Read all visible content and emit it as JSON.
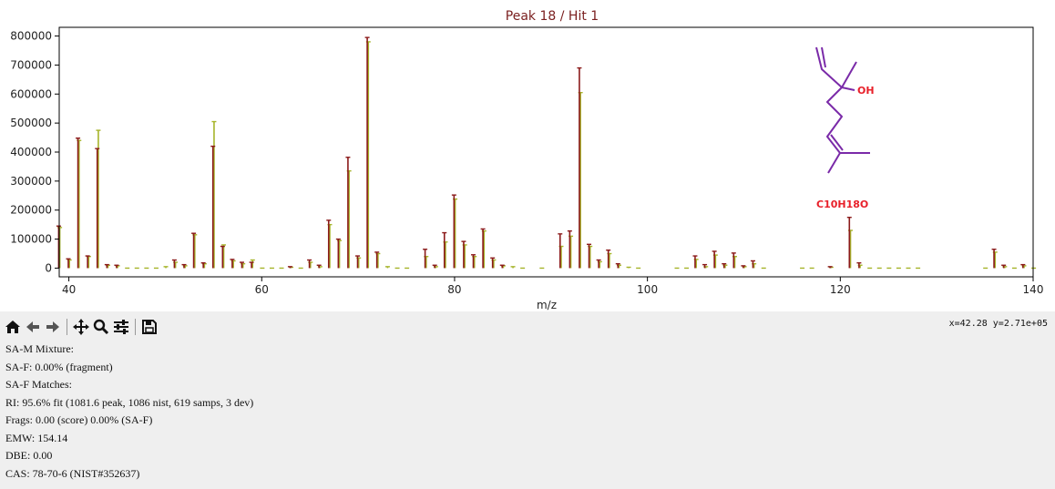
{
  "chart_data": {
    "type": "bar",
    "title": "Peak 18 / Hit 1",
    "xlabel": "m/z",
    "ylabel": "",
    "xlim": [
      39,
      140
    ],
    "ylim": [
      -30000,
      830000
    ],
    "x_ticks": [
      40,
      60,
      80,
      100,
      120,
      140
    ],
    "y_ticks": [
      0,
      100000,
      200000,
      300000,
      400000,
      500000,
      600000,
      700000,
      800000
    ],
    "grid": false,
    "series": [
      {
        "color": "#8b1a1a",
        "x": [
          39,
          40,
          41,
          42,
          43,
          44,
          45,
          51,
          52,
          53,
          54,
          55,
          56,
          57,
          58,
          59,
          63,
          65,
          66,
          67,
          68,
          69,
          70,
          71,
          72,
          77,
          78,
          79,
          80,
          81,
          82,
          83,
          84,
          85,
          91,
          92,
          93,
          94,
          95,
          96,
          97,
          105,
          106,
          107,
          108,
          109,
          110,
          111,
          119,
          121,
          122,
          136,
          137,
          139
        ],
        "values": [
          145000,
          32000,
          448000,
          42000,
          412000,
          12000,
          10000,
          28000,
          12000,
          120000,
          18000,
          420000,
          75000,
          30000,
          20000,
          20000,
          5000,
          28000,
          10000,
          165000,
          100000,
          382000,
          42000,
          795000,
          55000,
          65000,
          10000,
          122000,
          252000,
          92000,
          46000,
          135000,
          35000,
          10000,
          118000,
          128000,
          690000,
          82000,
          28000,
          62000,
          15000,
          42000,
          12000,
          58000,
          15000,
          52000,
          8000,
          25000,
          5000,
          175000,
          18000,
          65000,
          10000,
          12000
        ]
      },
      {
        "color": "#a6b42a",
        "x": [
          39,
          40,
          41,
          42,
          43,
          44,
          45,
          46,
          47,
          48,
          49,
          50,
          51,
          52,
          53,
          54,
          55,
          56,
          57,
          58,
          59,
          60,
          61,
          62,
          63,
          64,
          65,
          66,
          67,
          68,
          69,
          70,
          71,
          72,
          73,
          74,
          75,
          77,
          78,
          79,
          80,
          81,
          82,
          83,
          84,
          85,
          86,
          87,
          89,
          91,
          92,
          93,
          94,
          95,
          96,
          97,
          98,
          99,
          103,
          104,
          105,
          106,
          107,
          108,
          109,
          110,
          111,
          112,
          116,
          117,
          119,
          121,
          122,
          123,
          124,
          125,
          126,
          127,
          128,
          135,
          136,
          137,
          138,
          139,
          140
        ],
        "values": [
          140000,
          28000,
          440000,
          40000,
          475000,
          10000,
          8000,
          0,
          0,
          0,
          0,
          5000,
          20000,
          8000,
          115000,
          15000,
          505000,
          80000,
          25000,
          15000,
          28000,
          0,
          0,
          0,
          3000,
          0,
          20000,
          5000,
          150000,
          95000,
          335000,
          35000,
          780000,
          50000,
          5000,
          0,
          0,
          40000,
          5000,
          90000,
          238000,
          80000,
          40000,
          128000,
          28000,
          8000,
          5000,
          0,
          0,
          75000,
          110000,
          605000,
          75000,
          22000,
          50000,
          10000,
          3000,
          0,
          0,
          0,
          30000,
          5000,
          45000,
          10000,
          40000,
          5000,
          15000,
          0,
          0,
          0,
          3000,
          130000,
          10000,
          0,
          0,
          0,
          0,
          0,
          0,
          0,
          55000,
          5000,
          0,
          8000,
          0
        ]
      }
    ],
    "annotations": {
      "formula": "C10H18O",
      "hydroxyl_label": "OH"
    }
  },
  "structure_color": "#7a2aa8",
  "toolbar": {
    "icons": [
      "home-icon",
      "back-arrow-icon",
      "forward-arrow-icon",
      "pan-icon",
      "zoom-icon",
      "configure-icon",
      "save-icon"
    ]
  },
  "coord_readout": "x=42.28 y=2.71e+05",
  "info": {
    "lines": [
      "SA-M Mixture:",
      "SA-F: 0.00% (fragment)",
      "SA-F Matches:",
      "RI: 95.6% fit (1081.6 peak, 1086 nist, 619 samps, 3 dev)",
      "Frags: 0.00 (score) 0.00% (SA-F)",
      "EMW: 154.14",
      "DBE: 0.00",
      "CAS: 78-70-6 (NIST#352637)"
    ]
  }
}
